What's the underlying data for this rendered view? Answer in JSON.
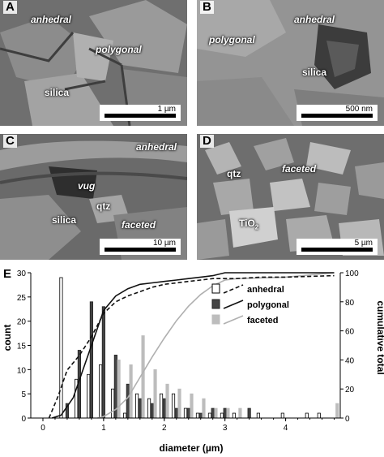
{
  "panels": [
    {
      "id": "A",
      "label": "A",
      "annotations": [
        {
          "text": "anhedral",
          "italic": true
        },
        {
          "text": "polygonal",
          "italic": true
        },
        {
          "text": "silica",
          "italic": false
        }
      ],
      "scale_bar": "1 µm"
    },
    {
      "id": "B",
      "label": "B",
      "annotations": [
        {
          "text": "anhedral",
          "italic": true
        },
        {
          "text": "polygonal",
          "italic": true
        },
        {
          "text": "silica",
          "italic": false
        }
      ],
      "scale_bar": "500 nm"
    },
    {
      "id": "C",
      "label": "C",
      "annotations": [
        {
          "text": "anhedral",
          "italic": true
        },
        {
          "text": "vug",
          "italic": true
        },
        {
          "text": "qtz",
          "italic": false
        },
        {
          "text": "silica",
          "italic": false
        },
        {
          "text": "faceted",
          "italic": true
        }
      ],
      "scale_bar": "10 µm"
    },
    {
      "id": "D",
      "label": "D",
      "annotations": [
        {
          "text": "qtz",
          "italic": false
        },
        {
          "text": "faceted",
          "italic": true
        },
        {
          "text": "TiO",
          "sub": "2",
          "italic": false
        }
      ],
      "scale_bar": "5 µm"
    }
  ],
  "chart_panel_label": "E",
  "chart_data": {
    "type": "bar",
    "xlabel": "diameter (µm)",
    "ylabel_left": "count",
    "ylabel_right": "cumulative total",
    "xlim": [
      -0.2,
      4.9
    ],
    "ylim_left": [
      0,
      30
    ],
    "ylim_right": [
      0,
      100
    ],
    "xticks": [
      0,
      1,
      2,
      3,
      4
    ],
    "yticks_left": [
      0,
      5,
      10,
      15,
      20,
      25,
      30
    ],
    "yticks_right": [
      0,
      20,
      40,
      60,
      80,
      100
    ],
    "bar_width": 0.045,
    "series": [
      {
        "name": "anhedral",
        "fill": "#ffffff",
        "stroke": "#000000",
        "offset": -0.05,
        "x": [
          0.35,
          0.6,
          0.8,
          1.0,
          1.2,
          1.4,
          1.6,
          1.8,
          2.0,
          2.2,
          2.4,
          2.6,
          2.8,
          3.0,
          3.2,
          3.6,
          4.0,
          4.4,
          4.6
        ],
        "values": [
          29,
          8,
          9,
          11,
          6,
          1,
          5,
          4,
          5,
          5,
          2,
          1,
          1,
          1,
          1,
          1,
          1,
          1,
          1
        ]
      },
      {
        "name": "polygonal",
        "fill": "#444444",
        "stroke": "#222222",
        "offset": 0.0,
        "x": [
          0.4,
          0.6,
          0.8,
          1.0,
          1.2,
          1.4,
          1.6,
          1.8,
          2.0,
          2.2,
          2.4,
          2.6,
          2.8,
          3.0,
          3.4
        ],
        "values": [
          3,
          14,
          24,
          23,
          13,
          7,
          4,
          3,
          4,
          2,
          2,
          1,
          2,
          2,
          2
        ],
        "cumulative_x": [
          0.15,
          0.3,
          0.5,
          0.7,
          0.9,
          1.0,
          1.2,
          1.4,
          1.6,
          1.8,
          2.0,
          2.2,
          2.4,
          2.6,
          2.8,
          3.0,
          3.4,
          4.8
        ],
        "cumulative": [
          0,
          2,
          14,
          38,
          62,
          74,
          84,
          89,
          92,
          93,
          94,
          95,
          96,
          97,
          98,
          100,
          100,
          100
        ]
      },
      {
        "name": "faceted",
        "fill": "#bdbdbd",
        "stroke": "#bdbdbd",
        "offset": 0.05,
        "x": [
          1.2,
          1.4,
          1.6,
          1.8,
          2.0,
          2.2,
          2.4,
          2.6,
          2.8,
          3.0,
          3.2,
          4.8
        ],
        "values": [
          12,
          11,
          17,
          10,
          7,
          6,
          5,
          4,
          2,
          2,
          2,
          3
        ],
        "cumulative_x": [
          0.9,
          1.0,
          1.2,
          1.4,
          1.6,
          1.8,
          2.0,
          2.2,
          2.4,
          2.6,
          2.8,
          3.0,
          3.2,
          4.0,
          4.8
        ],
        "cumulative": [
          0,
          1,
          6,
          14,
          28,
          42,
          55,
          67,
          77,
          85,
          91,
          95,
          96,
          97,
          100
        ]
      }
    ],
    "anhedral_cumulative_x": [
      0.1,
      0.25,
      0.4,
      0.6,
      0.8,
      1.0,
      1.2,
      1.4,
      1.6,
      1.8,
      2.0,
      2.2,
      2.4,
      2.6,
      2.8,
      3.0,
      3.2,
      3.6,
      4.0,
      4.8
    ],
    "anhedral_cumulative": [
      0,
      15,
      33,
      43,
      56,
      72,
      80,
      84,
      87,
      90,
      92,
      93,
      94,
      95,
      96,
      96,
      96,
      97,
      97,
      98
    ],
    "legend_position": "upper-right"
  }
}
